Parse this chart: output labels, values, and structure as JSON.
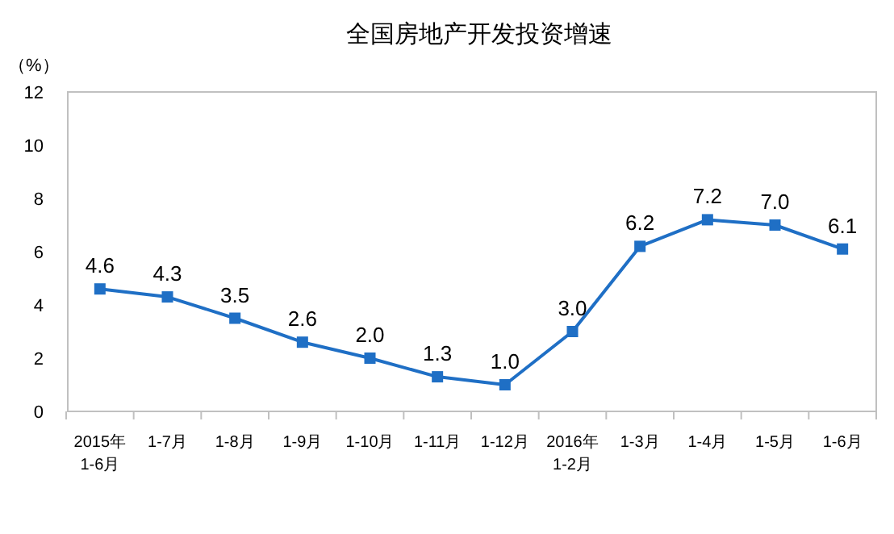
{
  "chart_data": {
    "type": "line",
    "title": "全国房地产开发投资增速",
    "ylabel": "（%）",
    "categories": [
      "2015年\n1-6月",
      "1-7月",
      "1-8月",
      "1-9月",
      "1-10月",
      "1-11月",
      "1-12月",
      "2016年\n1-2月",
      "1-3月",
      "1-4月",
      "1-5月",
      "1-6月"
    ],
    "series": [
      {
        "color": "#1f6fc5",
        "values": [
          4.6,
          4.3,
          3.5,
          2.6,
          2.0,
          1.3,
          1.0,
          3.0,
          6.2,
          7.2,
          7.0,
          6.1
        ]
      }
    ],
    "value_labels": [
      "4.6",
      "4.3",
      "3.5",
      "2.6",
      "2.0",
      "1.3",
      "1.0",
      "3.0",
      "6.2",
      "7.2",
      "7.0",
      "6.1"
    ],
    "ylim": [
      0,
      12
    ],
    "yticks": [
      0,
      2,
      4,
      6,
      8,
      10,
      12
    ],
    "marker": "square",
    "line_style": "solid",
    "grid": false
  }
}
